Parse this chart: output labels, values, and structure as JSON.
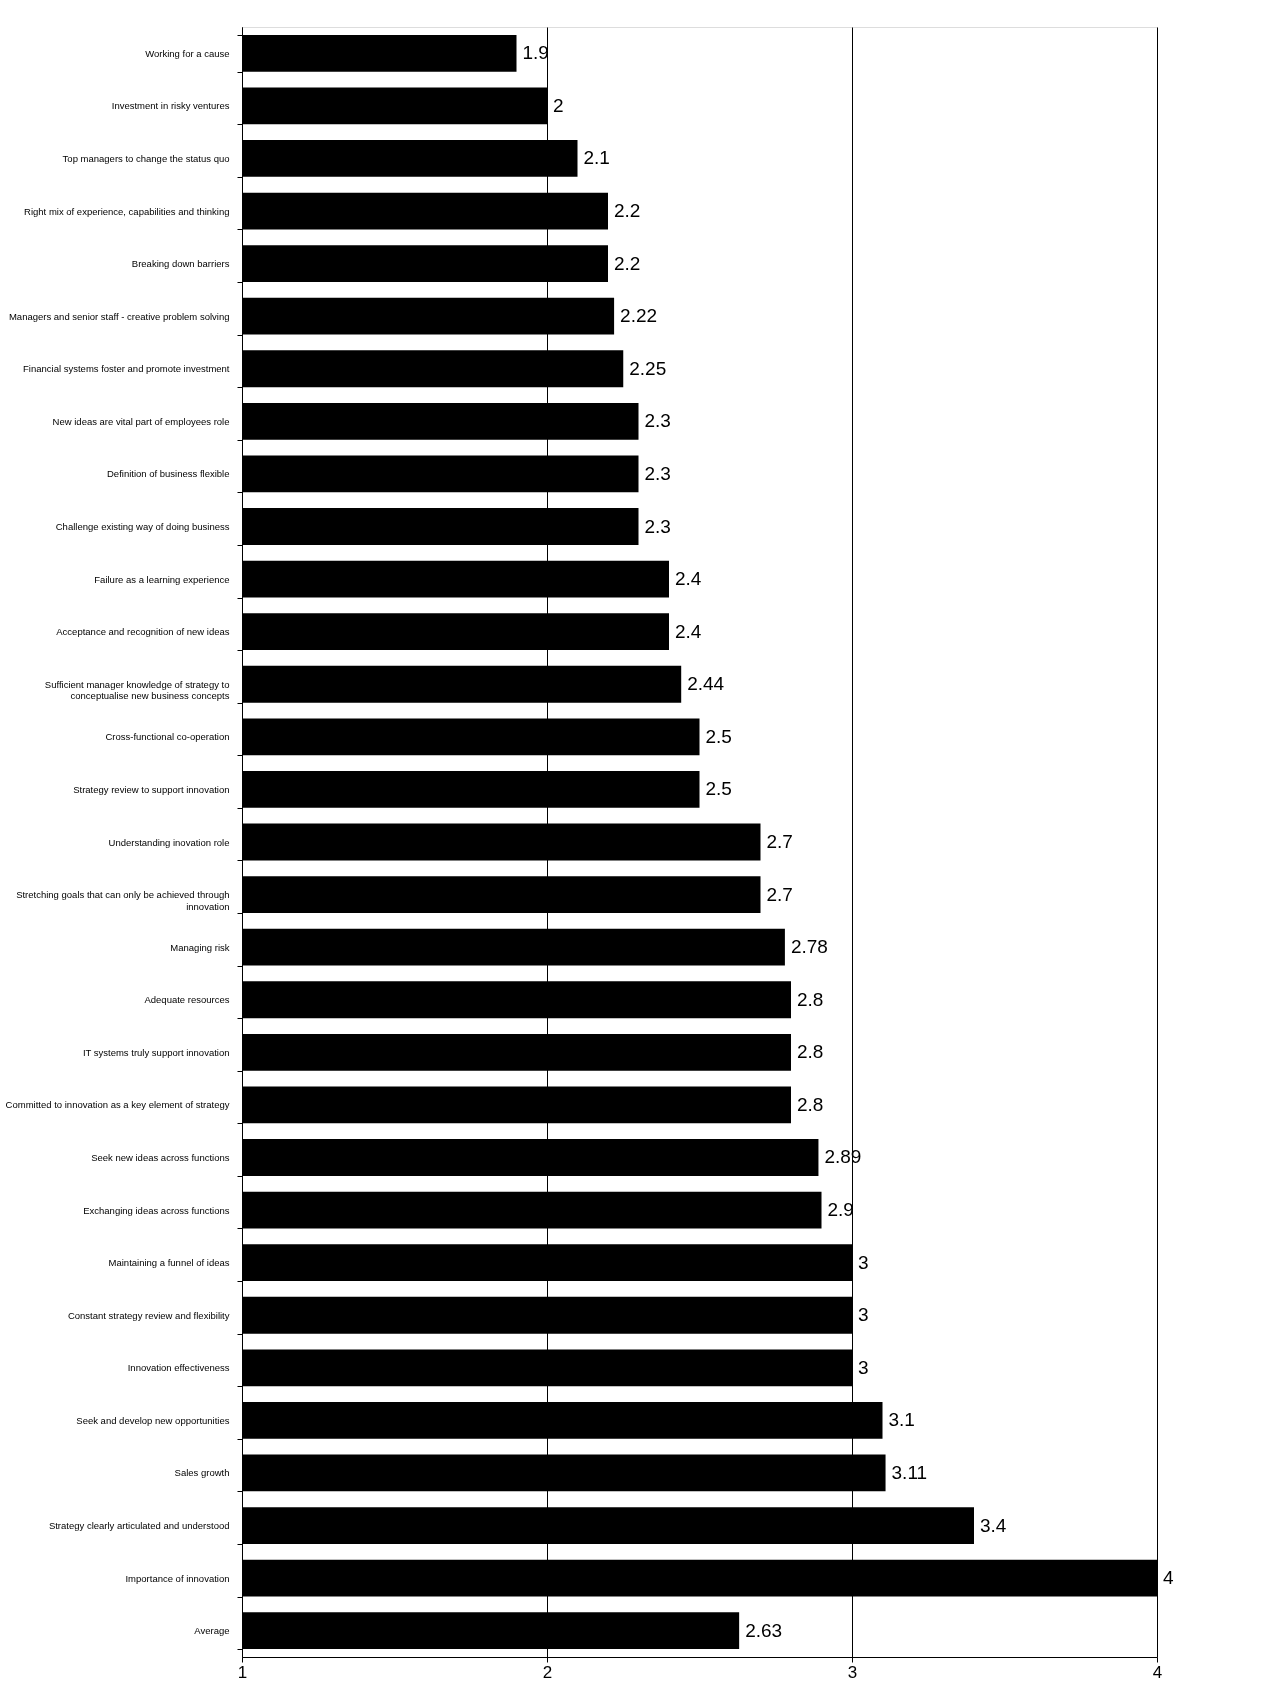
{
  "chart_data": {
    "type": "bar",
    "orientation": "horizontal",
    "categories": [
      "Working for a cause",
      "Investment in risky ventures",
      "Top managers to change the status quo",
      "Right mix of experience, capabilities and thinking",
      "Breaking down barriers",
      "Managers and senior staff - creative problem solving",
      "Financial systems foster and promote investment",
      "New ideas are vital part of employees role",
      "Definition of business flexible",
      "Challenge existing way of doing business",
      "Failure as a learning experience",
      "Acceptance and recognition of new ideas",
      "Sufficient manager knowledge of strategy to\nconceptualise new business concepts",
      "Cross-functional co-operation",
      "Strategy review to support innovation",
      "Understanding inovation role",
      "Stretching goals that can only be achieved through\ninnovation",
      "Managing risk",
      "Adequate resources",
      "IT systems truly support innovation",
      "Committed to innovation as a key element of strategy",
      "Seek new ideas across functions",
      "Exchanging ideas across functions",
      "Maintaining a funnel of ideas",
      "Constant strategy review and flexibility",
      "Innovation effectiveness",
      "Seek and develop new opportunities",
      "Sales growth",
      "Strategy clearly articulated and understood",
      "Importance of innovation",
      "Average"
    ],
    "values": [
      1.9,
      2,
      2.1,
      2.2,
      2.2,
      2.22,
      2.25,
      2.3,
      2.3,
      2.3,
      2.4,
      2.4,
      2.44,
      2.5,
      2.5,
      2.7,
      2.7,
      2.78,
      2.8,
      2.8,
      2.8,
      2.89,
      2.9,
      3,
      3,
      3,
      3.1,
      3.11,
      3.4,
      4,
      2.63
    ],
    "color": "#000000",
    "xlim": [
      1,
      4
    ],
    "xticks": [
      1,
      2,
      3,
      4
    ],
    "grid": "x",
    "data_labels": true
  }
}
